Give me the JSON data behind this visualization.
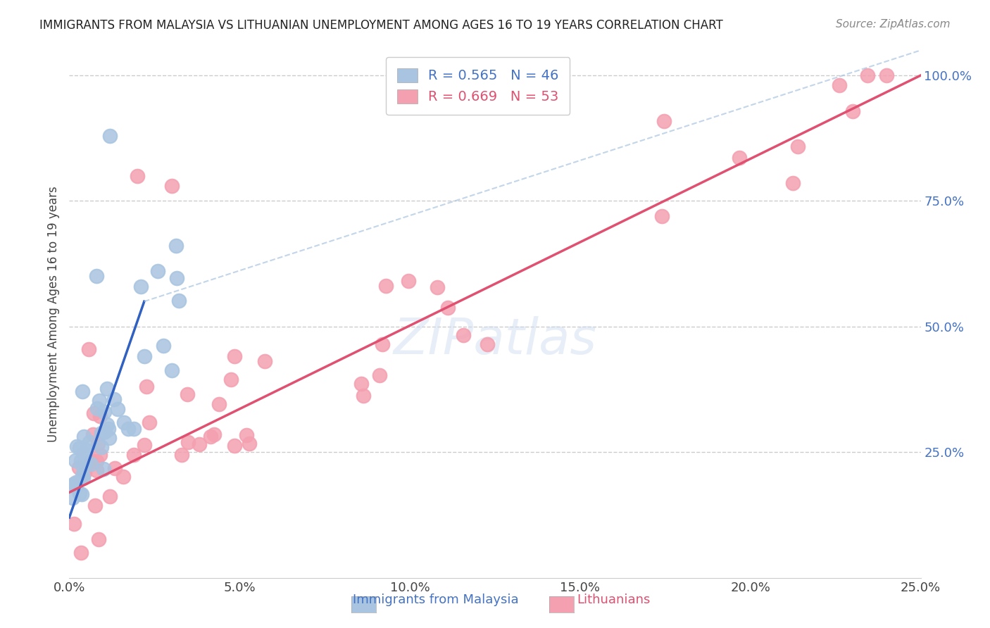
{
  "title": "IMMIGRANTS FROM MALAYSIA VS LITHUANIAN UNEMPLOYMENT AMONG AGES 16 TO 19 YEARS CORRELATION CHART",
  "source": "Source: ZipAtlas.com",
  "ylabel": "Unemployment Among Ages 16 to 19 years",
  "legend_blue_label": "Immigrants from Malaysia",
  "legend_pink_label": "Lithuanians",
  "r_blue": 0.565,
  "n_blue": 46,
  "r_pink": 0.669,
  "n_pink": 53,
  "blue_color": "#a8c4e0",
  "pink_color": "#f4a0b0",
  "blue_line_color": "#3060c0",
  "pink_line_color": "#e05070",
  "blue_text_color": "#4472c4",
  "pink_text_color": "#e05070",
  "x_tick_labels": [
    "0.0%",
    "5.0%",
    "10.0%",
    "15.0%",
    "20.0%",
    "25.0%"
  ],
  "x_tick_values": [
    0.0,
    0.05,
    0.1,
    0.15,
    0.2,
    0.25
  ],
  "y_tick_labels": [
    "25.0%",
    "50.0%",
    "75.0%",
    "100.0%"
  ],
  "y_tick_values": [
    0.25,
    0.5,
    0.75,
    1.0
  ],
  "xlim": [
    0.0,
    0.25
  ],
  "ylim": [
    0.0,
    1.05
  ],
  "watermark": "ZIPatlas",
  "grid_color": "#cccccc",
  "background_color": "#ffffff",
  "title_color": "#222222",
  "source_color": "#888888",
  "axis_label_color": "#444444"
}
